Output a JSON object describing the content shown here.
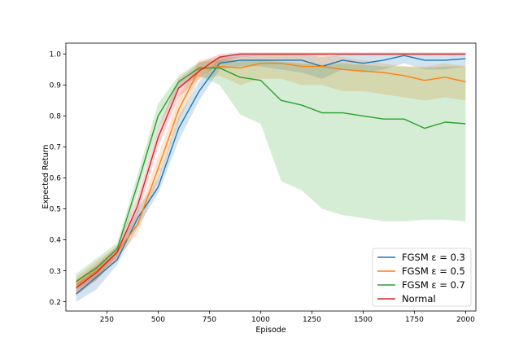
{
  "chart_data": {
    "type": "line",
    "title": "",
    "xlabel": "Episode",
    "ylabel": "Expected Return",
    "xlim": [
      50,
      2050
    ],
    "ylim": [
      0.17,
      1.035
    ],
    "xticks": [
      250,
      500,
      750,
      1000,
      1250,
      1500,
      1750,
      2000
    ],
    "xtick_labels": [
      "250",
      "500",
      "750",
      "1000",
      "1250",
      "1500",
      "1750",
      "2000"
    ],
    "yticks": [
      0.2,
      0.3,
      0.4,
      0.5,
      0.6,
      0.7,
      0.8,
      0.9,
      1.0
    ],
    "ytick_labels": [
      "0.2",
      "0.3",
      "0.4",
      "0.5",
      "0.6",
      "0.7",
      "0.8",
      "0.9",
      "1.0"
    ],
    "grid": false,
    "legend_position": "bottom-right",
    "x": [
      100,
      200,
      300,
      400,
      500,
      600,
      700,
      800,
      900,
      1000,
      1100,
      1200,
      1300,
      1400,
      1500,
      1600,
      1700,
      1800,
      1900,
      2000
    ],
    "series": [
      {
        "name": "FGSM ε = 0.3",
        "color": "#1f77b4",
        "values": [
          0.225,
          0.28,
          0.335,
          0.47,
          0.57,
          0.76,
          0.88,
          0.97,
          0.98,
          0.98,
          0.98,
          0.98,
          0.96,
          0.98,
          0.97,
          0.98,
          0.995,
          0.98,
          0.98,
          0.985
        ],
        "lower": [
          0.2,
          0.24,
          0.32,
          0.44,
          0.55,
          0.72,
          0.85,
          0.95,
          0.96,
          0.96,
          0.95,
          0.94,
          0.92,
          0.95,
          0.94,
          0.95,
          0.97,
          0.95,
          0.95,
          0.96
        ],
        "upper": [
          0.25,
          0.31,
          0.36,
          0.5,
          0.6,
          0.8,
          0.91,
          0.99,
          1.0,
          1.0,
          1.0,
          1.0,
          0.99,
          1.0,
          1.0,
          1.0,
          1.0,
          1.0,
          1.0,
          1.0
        ]
      },
      {
        "name": "FGSM ε = 0.5",
        "color": "#ff7f0e",
        "values": [
          0.255,
          0.3,
          0.36,
          0.45,
          0.63,
          0.82,
          0.95,
          0.96,
          0.955,
          0.97,
          0.97,
          0.96,
          0.96,
          0.95,
          0.945,
          0.94,
          0.93,
          0.915,
          0.925,
          0.91
        ],
        "lower": [
          0.23,
          0.27,
          0.34,
          0.42,
          0.59,
          0.78,
          0.92,
          0.93,
          0.9,
          0.92,
          0.92,
          0.9,
          0.9,
          0.88,
          0.88,
          0.87,
          0.86,
          0.85,
          0.86,
          0.85
        ],
        "upper": [
          0.28,
          0.33,
          0.38,
          0.48,
          0.67,
          0.86,
          0.98,
          0.99,
          0.99,
          1.0,
          1.0,
          1.0,
          1.0,
          0.99,
          0.98,
          0.97,
          0.96,
          0.96,
          0.97,
          0.96
        ]
      },
      {
        "name": "FGSM ε = 0.7",
        "color": "#2ca02c",
        "values": [
          0.265,
          0.31,
          0.37,
          0.58,
          0.8,
          0.91,
          0.955,
          0.955,
          0.925,
          0.915,
          0.85,
          0.835,
          0.81,
          0.81,
          0.8,
          0.79,
          0.79,
          0.76,
          0.78,
          0.775
        ],
        "lower": [
          0.24,
          0.28,
          0.35,
          0.55,
          0.76,
          0.89,
          0.93,
          0.9,
          0.805,
          0.775,
          0.59,
          0.56,
          0.5,
          0.48,
          0.47,
          0.46,
          0.46,
          0.465,
          0.465,
          0.46
        ],
        "upper": [
          0.29,
          0.34,
          0.39,
          0.61,
          0.84,
          0.93,
          0.975,
          0.98,
          0.98,
          0.98,
          0.975,
          0.97,
          0.965,
          0.97,
          0.965,
          0.96,
          0.96,
          0.955,
          0.96,
          0.96
        ]
      },
      {
        "name": "Normal",
        "color": "#d62728",
        "values": [
          0.245,
          0.295,
          0.36,
          0.51,
          0.73,
          0.89,
          0.945,
          0.99,
          1.0,
          1.0,
          1.0,
          1.0,
          1.0,
          1.0,
          1.0,
          1.0,
          1.0,
          1.0,
          1.0,
          1.0
        ],
        "lower": [
          0.22,
          0.27,
          0.34,
          0.48,
          0.7,
          0.86,
          0.92,
          0.97,
          0.99,
          0.995,
          0.995,
          0.995,
          0.995,
          0.995,
          0.995,
          0.995,
          0.995,
          0.995,
          0.995,
          0.995
        ],
        "upper": [
          0.27,
          0.32,
          0.38,
          0.54,
          0.76,
          0.92,
          0.97,
          1.0,
          1.005,
          1.005,
          1.005,
          1.005,
          1.005,
          1.005,
          1.005,
          1.005,
          1.005,
          1.005,
          1.005,
          1.005
        ]
      }
    ]
  }
}
